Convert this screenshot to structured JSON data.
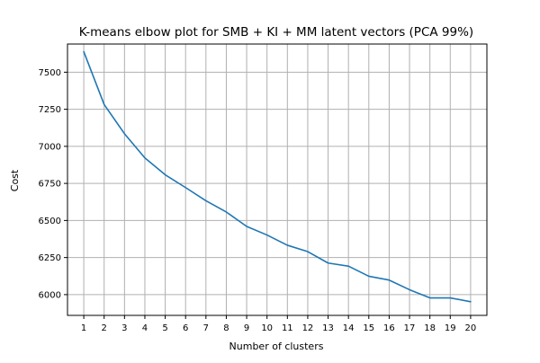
{
  "chart_data": {
    "type": "line",
    "title": "K-means elbow plot for SMB + KI + MM latent vectors (PCA 99%)",
    "xlabel": "Number of clusters",
    "ylabel": "Cost",
    "x": [
      1,
      2,
      3,
      4,
      5,
      6,
      7,
      8,
      9,
      10,
      11,
      12,
      13,
      14,
      15,
      16,
      17,
      18,
      19,
      20
    ],
    "x_tick_labels": [
      "1",
      "2",
      "3",
      "4",
      "5",
      "6",
      "7",
      "8",
      "9",
      "10",
      "11",
      "12",
      "13",
      "14",
      "15",
      "16",
      "17",
      "18",
      "19",
      "20"
    ],
    "series": [
      {
        "values": [
          7638,
          7282,
          7085,
          6922,
          6808,
          6722,
          6633,
          6557,
          6460,
          6402,
          6333,
          6290,
          6213,
          6192,
          6124,
          6098,
          6033,
          5978,
          5978,
          5952
        ],
        "color": "#1f77b4"
      }
    ],
    "xlim": [
      0.2,
      20.8
    ],
    "ylim": [
      5860,
      7690
    ],
    "y_ticks": [
      6000,
      6250,
      6500,
      6750,
      7000,
      7250,
      7500
    ],
    "y_tick_labels": [
      "6000",
      "6250",
      "6500",
      "6750",
      "7000",
      "7250",
      "7500"
    ],
    "grid": true,
    "legend": "none"
  }
}
